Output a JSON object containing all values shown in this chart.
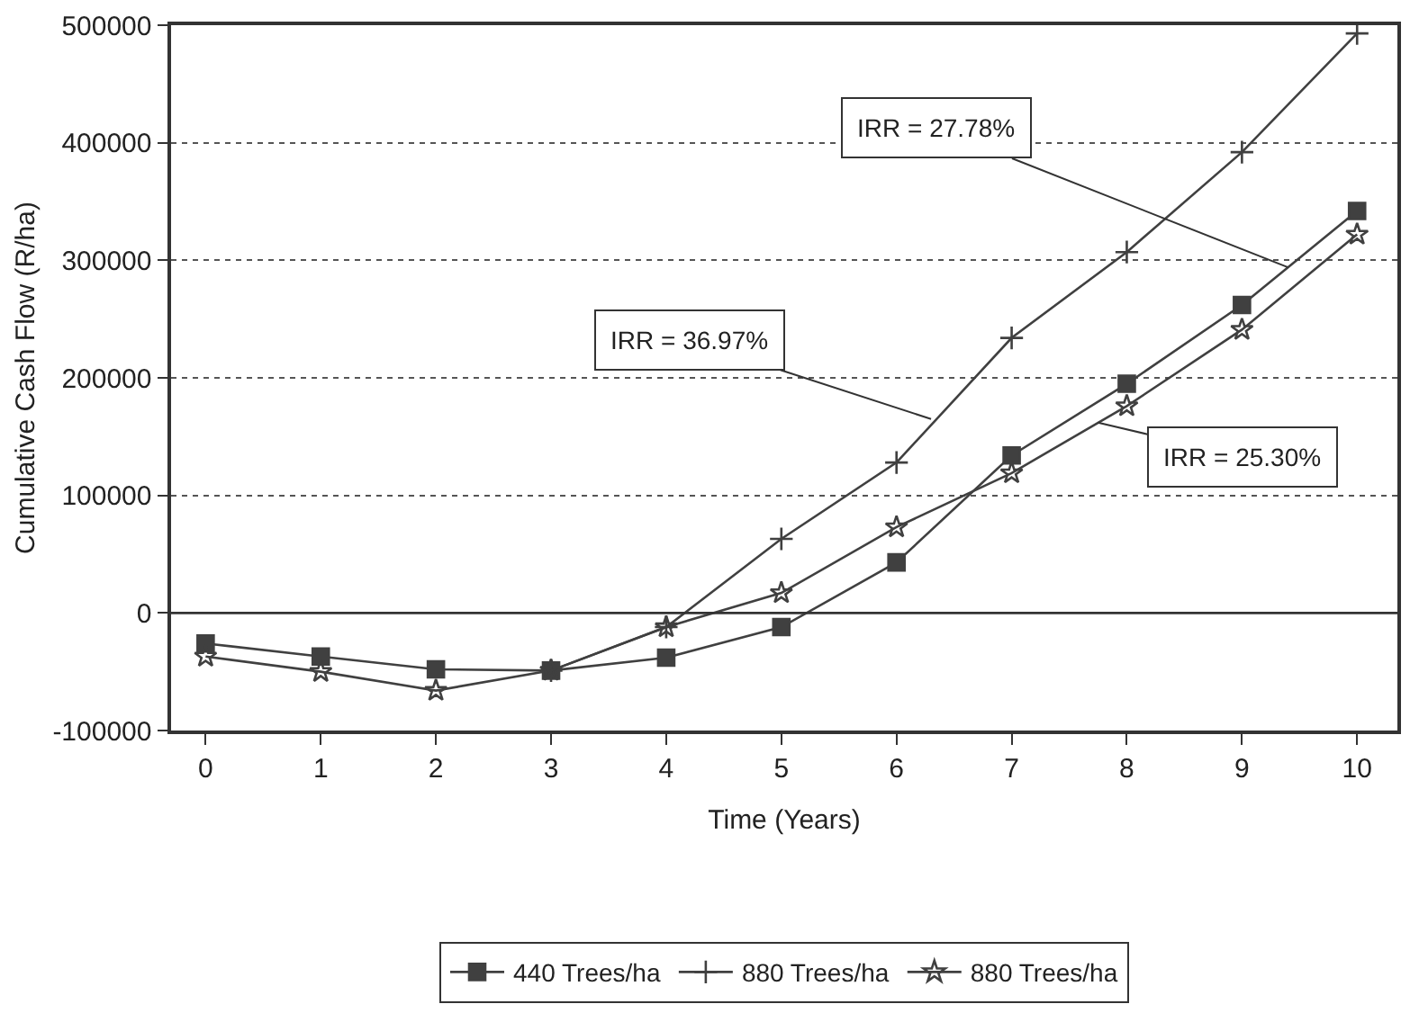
{
  "chart_data": {
    "type": "line",
    "xlabel": "Time (Years)",
    "ylabel": "Cumulative Cash Flow (R/ha)",
    "x": [
      0,
      1,
      2,
      3,
      4,
      5,
      6,
      7,
      8,
      9,
      10
    ],
    "series": [
      {
        "name": "440 Trees/ha",
        "color": "#404040",
        "marker": "square",
        "values": [
          -26000,
          -37000,
          -48000,
          -49000,
          -38000,
          -12000,
          43000,
          134000,
          195000,
          262000,
          342000
        ]
      },
      {
        "name": "880 Trees/ha",
        "color": "#404040",
        "marker": "cross",
        "values": [
          null,
          null,
          null,
          -49000,
          -12000,
          63000,
          128000,
          234000,
          307000,
          392000,
          493000
        ]
      },
      {
        "name": "880 Trees/ha",
        "color": "#404040",
        "marker": "star",
        "values": [
          -37000,
          -50000,
          -66000,
          -49000,
          -12000,
          17000,
          73000,
          119000,
          176000,
          241000,
          322000
        ]
      }
    ],
    "xlim": [
      -0.3,
      10.35
    ],
    "xticks": [
      0,
      1,
      2,
      3,
      4,
      5,
      6,
      7,
      8,
      9,
      10
    ],
    "ylim": [
      -100000,
      500000
    ],
    "yticks": [
      -100000,
      0,
      100000,
      200000,
      300000,
      400000,
      500000
    ],
    "ref_lines": [
      {
        "axis": "y",
        "value": 0,
        "label": null
      }
    ],
    "grid": "y",
    "legend": "bottom",
    "line_style": "solid",
    "annotations": [
      {
        "text": "IRR = 36.97%",
        "x": 6.3,
        "y": 165000
      },
      {
        "text": "IRR = 27.78%",
        "x": 9.4,
        "y": 294000
      },
      {
        "text": "IRR = 25.30%",
        "x": 7.75,
        "y": 162000
      }
    ]
  }
}
